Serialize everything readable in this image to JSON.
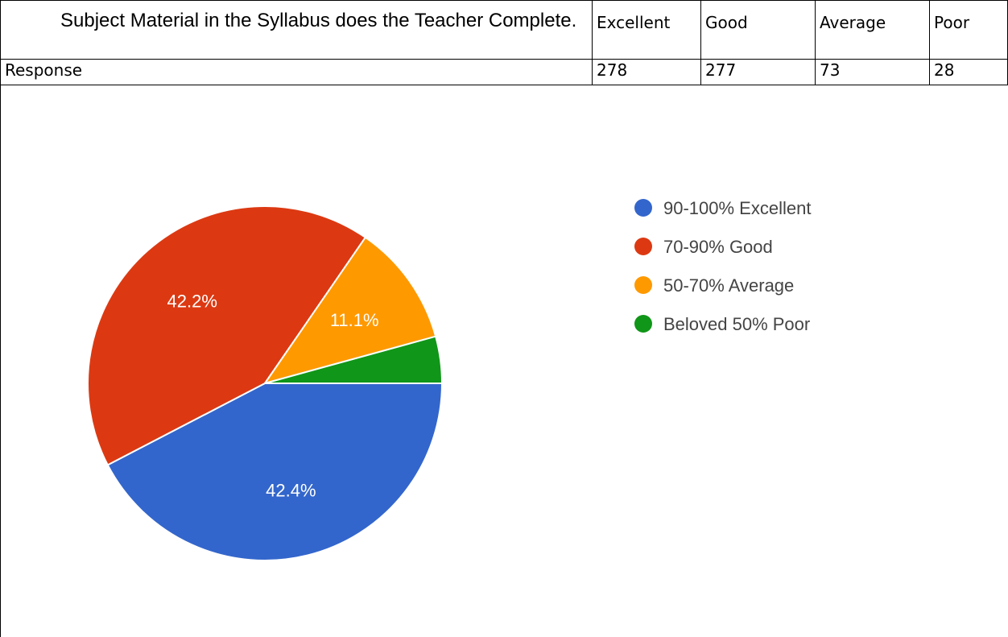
{
  "table": {
    "question": "Subject Material in the Syllabus does the Teacher Complete.",
    "headers": [
      "Excellent",
      "Good",
      "Average",
      "Poor"
    ],
    "row_label": "Response",
    "values": [
      "278",
      "277",
      "73",
      "28"
    ]
  },
  "chart_data": {
    "type": "pie",
    "labels": [
      "90-100% Excellent",
      "70-90% Good",
      "50-70% Average",
      "Beloved 50% Poor"
    ],
    "values": [
      278,
      277,
      73,
      28
    ],
    "slice_labels": [
      "42.4%",
      "42.2%",
      "11.1%",
      ""
    ],
    "colors": [
      "#3366cc",
      "#dc3912",
      "#ff9900",
      "#109618"
    ],
    "legend_position": "right"
  }
}
